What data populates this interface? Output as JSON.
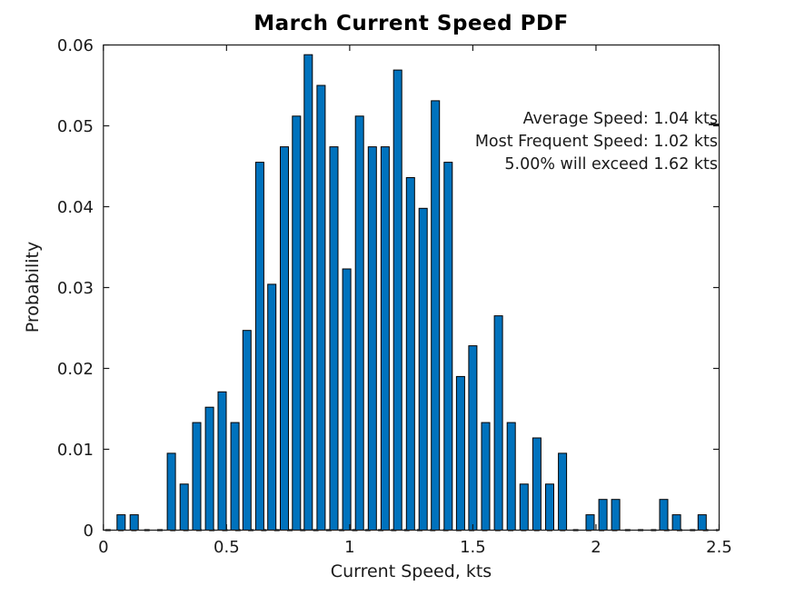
{
  "title": "March Current Speed PDF",
  "annotation": {
    "lines": [
      "Average Speed: 1.04 kts",
      "Most Frequent Speed: 1.02 kts",
      "5.00% will exceed 1.62 kts"
    ]
  },
  "stats": {
    "average_speed_kts": 1.04,
    "most_frequent_speed_kts": 1.02,
    "exceedance_percent": "5.00",
    "exceedance_speed_kts": 1.62
  },
  "chart_data": {
    "type": "bar",
    "title": "March Current Speed PDF",
    "xlabel": "Current Speed, kts",
    "ylabel": "Probability",
    "xlim": [
      0,
      2.5
    ],
    "ylim": [
      0,
      0.06
    ],
    "grid": "off",
    "legend": "none",
    "bar_color": "#0072BD",
    "bar_edge_color": "#000000",
    "axis_color": "#1a1a1a",
    "xticks": [
      {
        "value": 0,
        "label": "0"
      },
      {
        "value": 0.5,
        "label": "0.5"
      },
      {
        "value": 1,
        "label": "1"
      },
      {
        "value": 1.5,
        "label": "1.5"
      },
      {
        "value": 2,
        "label": "2"
      },
      {
        "value": 2.5,
        "label": "2.5"
      }
    ],
    "yticks": [
      {
        "value": 0,
        "label": "0"
      },
      {
        "value": 0.01,
        "label": "0.01"
      },
      {
        "value": 0.02,
        "label": "0.02"
      },
      {
        "value": 0.03,
        "label": "0.03"
      },
      {
        "value": 0.04,
        "label": "0.04"
      },
      {
        "value": 0.05,
        "label": "0.05"
      },
      {
        "value": 0.06,
        "label": "0.06"
      }
    ],
    "x": [
      0.072,
      0.125,
      0.276,
      0.328,
      0.379,
      0.431,
      0.482,
      0.534,
      0.583,
      0.635,
      0.684,
      0.735,
      0.784,
      0.832,
      0.884,
      0.936,
      0.988,
      1.04,
      1.092,
      1.144,
      1.195,
      1.247,
      1.298,
      1.348,
      1.4,
      1.45,
      1.5,
      1.552,
      1.604,
      1.656,
      1.708,
      1.76,
      1.812,
      1.864,
      1.976,
      2.028,
      2.08,
      2.275,
      2.327,
      2.431
    ],
    "y": [
      0.0019,
      0.0019,
      0.0095,
      0.0057,
      0.0133,
      0.0152,
      0.0171,
      0.0133,
      0.0247,
      0.0455,
      0.0304,
      0.0474,
      0.0512,
      0.0588,
      0.055,
      0.0474,
      0.0323,
      0.0512,
      0.0474,
      0.0474,
      0.0569,
      0.0436,
      0.0398,
      0.0531,
      0.0455,
      0.019,
      0.0228,
      0.0133,
      0.0265,
      0.0133,
      0.0057,
      0.0114,
      0.0057,
      0.0095,
      0.0019,
      0.0038,
      0.0038,
      0.0038,
      0.0019,
      0.0019
    ]
  }
}
